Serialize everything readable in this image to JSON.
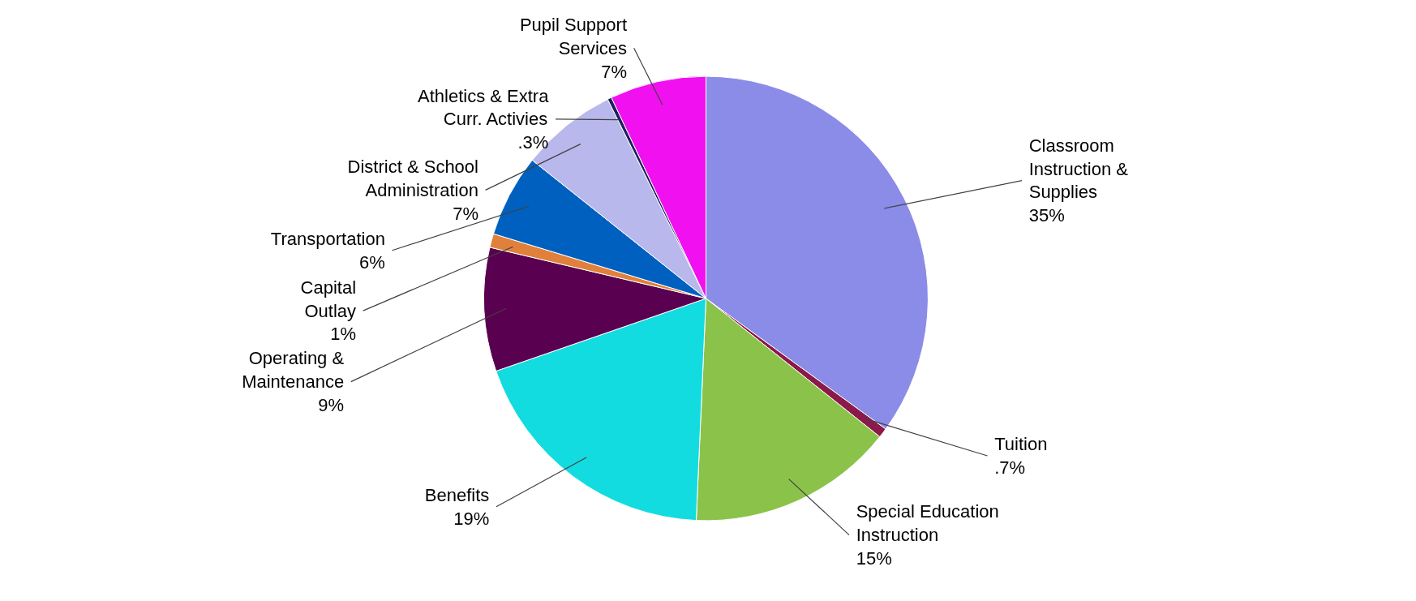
{
  "chart_data": {
    "type": "pie",
    "categories": [
      "Classroom\nInstruction &\nSupplies",
      "Tuition",
      "Special Education\nInstruction",
      "Benefits",
      "Operating &\nMaintenance",
      "Capital\nOutlay",
      "Transportation",
      "District & School\nAdministration",
      "Athletics & Extra\nCurr. Activies",
      "Pupil Support\nServices"
    ],
    "values": [
      35,
      0.7,
      15,
      19,
      9,
      1,
      6,
      7,
      0.3,
      7
    ],
    "value_labels": [
      "35%",
      ".7%",
      "15%",
      "19%",
      "9%",
      "1%",
      "6%",
      "7%",
      ".3%",
      "7%"
    ],
    "colors": [
      "#8b8be8",
      "#8b1a4a",
      "#8bc34a",
      "#12dce0",
      "#5a0050",
      "#e0803a",
      "#0060c0",
      "#b8b8ec",
      "#202060",
      "#f010f0"
    ]
  }
}
